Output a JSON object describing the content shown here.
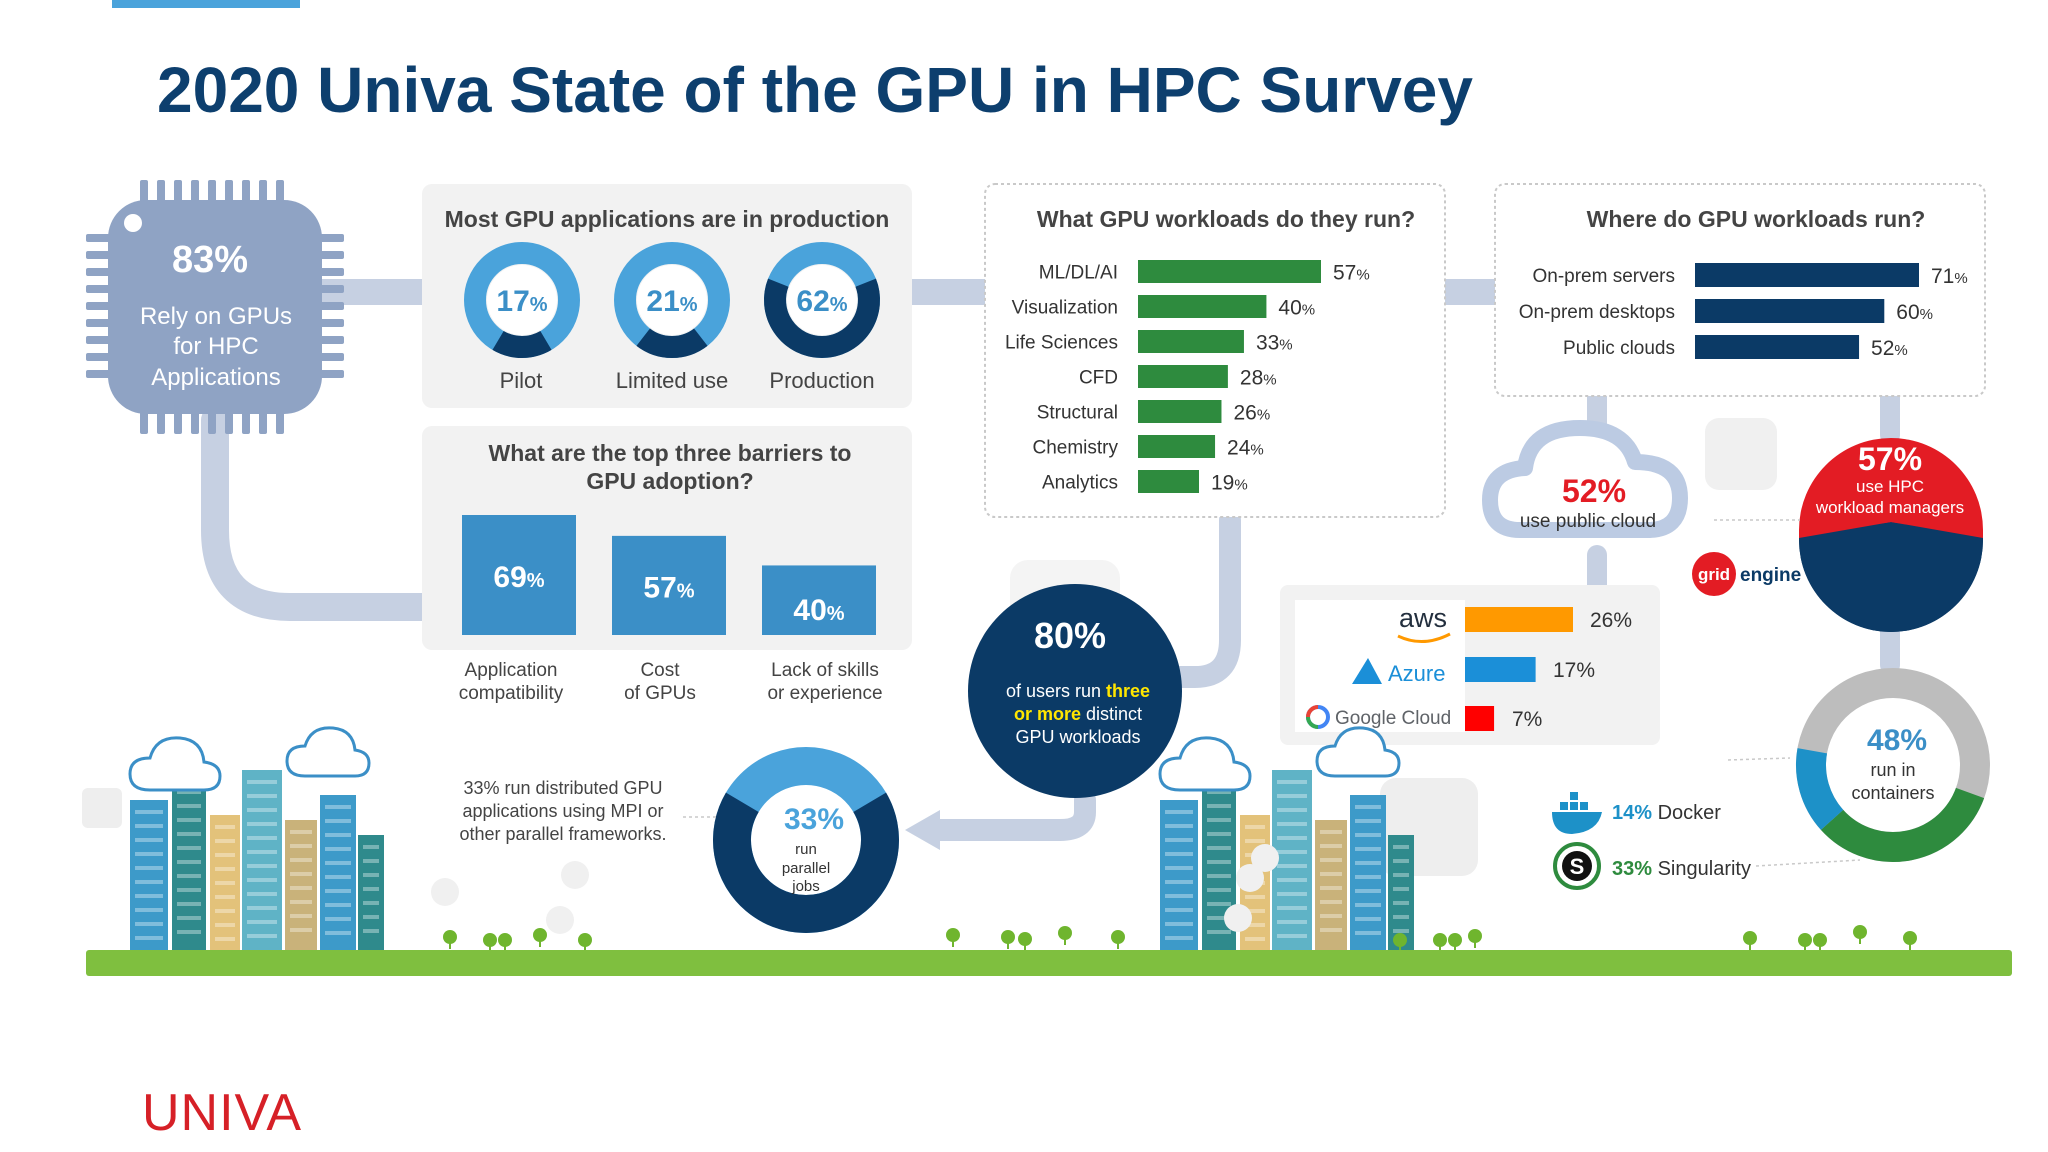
{
  "title": "2020 Univa State of the GPU in HPC Survey",
  "logo_text": "UNIVA",
  "colors": {
    "title": "#0d3f6e",
    "navy": "#0b3a66",
    "green": "#2e8b3e",
    "lightblue": "#4aa3db",
    "midblue": "#3b8fc7",
    "red": "#e31c24",
    "grey": "#666666",
    "panel": "#f2f2f2",
    "chip": "#8fa3c4",
    "aws": "#ff9900",
    "azure": "#1b8fd8",
    "gcloud": "#ff0000",
    "ground": "#7fbf3f"
  },
  "chip": {
    "value": "83%",
    "lines": [
      "Rely on GPUs",
      "for HPC",
      "Applications"
    ]
  },
  "production": {
    "title": "Most GPU applications are in production",
    "items": [
      {
        "value": 17,
        "label": "Pilot"
      },
      {
        "value": 21,
        "label": "Limited use"
      },
      {
        "value": 62,
        "label": "Production"
      }
    ]
  },
  "barriers": {
    "title_lines": [
      "What are the top three barriers to",
      "GPU adoption?"
    ],
    "items": [
      {
        "value": 69,
        "label_lines": [
          "Application",
          "compatibility"
        ]
      },
      {
        "value": 57,
        "label_lines": [
          "Cost",
          "of GPUs"
        ]
      },
      {
        "value": 40,
        "label_lines": [
          "Lack of skills",
          "or experience"
        ]
      }
    ]
  },
  "chart_data": [
    {
      "type": "bar",
      "title": "What GPU workloads do they run?",
      "categories": [
        "ML/DL/AI",
        "Visualization",
        "Life Sciences",
        "CFD",
        "Structural",
        "Chemistry",
        "Analytics"
      ],
      "values": [
        57,
        40,
        33,
        28,
        26,
        24,
        19
      ]
    },
    {
      "type": "bar",
      "title": "Where do GPU workloads run?",
      "categories": [
        "On-prem servers",
        "On-prem desktops",
        "Public clouds"
      ],
      "values": [
        71,
        60,
        52
      ]
    },
    {
      "type": "bar",
      "categories": [
        "aws",
        "Azure",
        "Google Cloud"
      ],
      "values": [
        26,
        17,
        7
      ]
    }
  ],
  "public_cloud": {
    "value": "52%",
    "label": "use public cloud"
  },
  "hpc_managers": {
    "value": "57%",
    "lines": [
      "use HPC",
      "workload managers"
    ],
    "brand_a": "grid",
    "brand_b": "engine"
  },
  "distinct": {
    "value": "80%",
    "line1_a": "of users run ",
    "line1_b": "three",
    "line2_a": "or more",
    "line2_b": " distinct",
    "line3": "GPU workloads"
  },
  "parallel": {
    "value": "33%",
    "lines": [
      "run",
      "parallel",
      "jobs"
    ],
    "note_lines": [
      "33% run distributed GPU",
      "applications using MPI or",
      "other parallel frameworks."
    ]
  },
  "containers": {
    "value": "48%",
    "lines": [
      "run in",
      "containers"
    ],
    "docker_value": "14%",
    "docker_label": "Docker",
    "singularity_value": "33%",
    "singularity_label": "Singularity"
  }
}
